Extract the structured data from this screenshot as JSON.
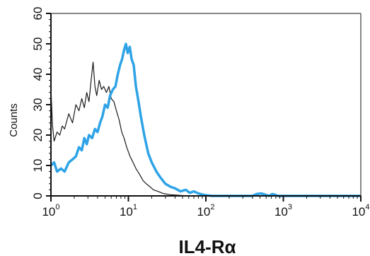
{
  "chart_data": {
    "type": "line",
    "title": "",
    "xlabel": "IL4-Rα",
    "ylabel": "Counts",
    "x_scale": "log",
    "xlim": [
      1,
      10000
    ],
    "ylim": [
      0,
      60
    ],
    "x_ticks": [
      {
        "base": "10",
        "exp": "0",
        "value": 1
      },
      {
        "base": "10",
        "exp": "1",
        "value": 10
      },
      {
        "base": "10",
        "exp": "2",
        "value": 100
      },
      {
        "base": "10",
        "exp": "3",
        "value": 1000
      },
      {
        "base": "10",
        "exp": "4",
        "value": 10000
      }
    ],
    "y_ticks": [
      {
        "label": "0",
        "value": 0
      },
      {
        "label": "10",
        "value": 10
      },
      {
        "label": "20",
        "value": 20
      },
      {
        "label": "30",
        "value": 30
      },
      {
        "label": "40",
        "value": 40
      },
      {
        "label": "50",
        "value": 50
      },
      {
        "label": "60",
        "value": 60
      }
    ],
    "grid": false,
    "series": [
      {
        "color": "#1a1a1a",
        "points": [
          [
            1.0,
            35
          ],
          [
            1.05,
            23
          ],
          [
            1.1,
            18
          ],
          [
            1.2,
            21
          ],
          [
            1.3,
            20
          ],
          [
            1.4,
            23
          ],
          [
            1.5,
            22
          ],
          [
            1.7,
            27
          ],
          [
            1.9,
            24
          ],
          [
            2.1,
            30
          ],
          [
            2.3,
            28
          ],
          [
            2.5,
            32
          ],
          [
            2.7,
            29
          ],
          [
            2.9,
            34
          ],
          [
            3.1,
            31
          ],
          [
            3.3,
            38
          ],
          [
            3.5,
            44
          ],
          [
            3.7,
            36
          ],
          [
            3.9,
            33
          ],
          [
            4.2,
            38
          ],
          [
            4.5,
            35
          ],
          [
            4.8,
            36
          ],
          [
            5.2,
            34
          ],
          [
            5.6,
            36
          ],
          [
            6.0,
            32
          ],
          [
            6.5,
            31
          ],
          [
            7.0,
            28
          ],
          [
            7.6,
            25
          ],
          [
            8.2,
            21
          ],
          [
            8.8,
            19
          ],
          [
            9.5,
            16
          ],
          [
            10.5,
            13
          ],
          [
            11.5,
            11
          ],
          [
            12.5,
            9
          ],
          [
            14,
            7
          ],
          [
            15.5,
            5
          ],
          [
            17,
            4
          ],
          [
            19,
            3
          ],
          [
            21,
            2
          ],
          [
            24,
            1.5
          ],
          [
            28,
            0.8
          ],
          [
            35,
            0.4
          ],
          [
            45,
            0.2
          ],
          [
            60,
            0
          ],
          [
            10000,
            0
          ]
        ]
      },
      {
        "color": "#2ea3e6",
        "points": [
          [
            1.0,
            10
          ],
          [
            1.1,
            11
          ],
          [
            1.2,
            8
          ],
          [
            1.35,
            9
          ],
          [
            1.5,
            8
          ],
          [
            1.7,
            11
          ],
          [
            1.9,
            12
          ],
          [
            2.1,
            13
          ],
          [
            2.3,
            16
          ],
          [
            2.5,
            15
          ],
          [
            2.7,
            19
          ],
          [
            2.9,
            17
          ],
          [
            3.1,
            20
          ],
          [
            3.4,
            19
          ],
          [
            3.7,
            22
          ],
          [
            4.0,
            21
          ],
          [
            4.3,
            24
          ],
          [
            4.6,
            26
          ],
          [
            5.0,
            30
          ],
          [
            5.4,
            29
          ],
          [
            5.8,
            33
          ],
          [
            6.3,
            35
          ],
          [
            6.8,
            36
          ],
          [
            7.3,
            40
          ],
          [
            7.8,
            43
          ],
          [
            8.3,
            45
          ],
          [
            8.8,
            48
          ],
          [
            9.3,
            50
          ],
          [
            9.8,
            47
          ],
          [
            10.4,
            49
          ],
          [
            11,
            45
          ],
          [
            11.7,
            43
          ],
          [
            12.5,
            36
          ],
          [
            13.5,
            31
          ],
          [
            14.5,
            26
          ],
          [
            16,
            20
          ],
          [
            18,
            14
          ],
          [
            20,
            11
          ],
          [
            23,
            8
          ],
          [
            26,
            6
          ],
          [
            30,
            4
          ],
          [
            35,
            3
          ],
          [
            40,
            2.5
          ],
          [
            47,
            1.5
          ],
          [
            55,
            2
          ],
          [
            62,
            1
          ],
          [
            70,
            1.5
          ],
          [
            80,
            0.8
          ],
          [
            95,
            0.3
          ],
          [
            120,
            0
          ],
          [
            400,
            0
          ],
          [
            450,
            0.6
          ],
          [
            520,
            0.8
          ],
          [
            600,
            0.3
          ],
          [
            650,
            0
          ],
          [
            720,
            0.6
          ],
          [
            780,
            0.4
          ],
          [
            850,
            0
          ],
          [
            10000,
            0
          ]
        ]
      }
    ]
  }
}
